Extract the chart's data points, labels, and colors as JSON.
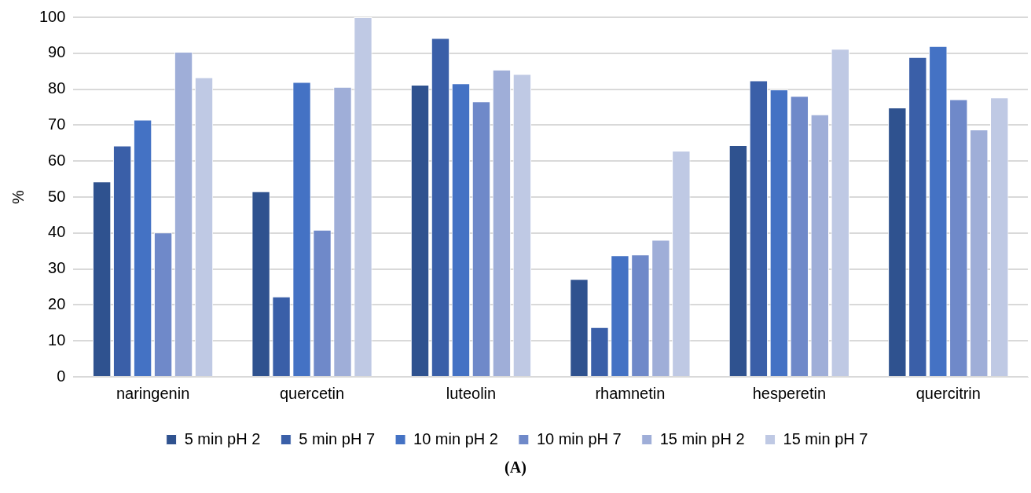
{
  "chart_data": {
    "type": "bar",
    "ylabel": "%",
    "categories": [
      "naringenin",
      "quercetin",
      "luteolin",
      "rhamnetin",
      "hesperetin",
      "quercitrin"
    ],
    "series": [
      {
        "name": "5 min pH 2",
        "color": "#2f528f",
        "values": [
          54.3,
          51.6,
          81.2,
          27.2,
          64.4,
          74.9
        ]
      },
      {
        "name": "5 min pH 7",
        "color": "#3a5fa8",
        "values": [
          64.3,
          22.3,
          94.2,
          13.8,
          82.4,
          88.9
        ]
      },
      {
        "name": "10 min pH 2",
        "color": "#4472c4",
        "values": [
          71.5,
          82.0,
          81.6,
          33.8,
          79.9,
          92.0
        ]
      },
      {
        "name": "10 min pH 7",
        "color": "#6f89c9",
        "values": [
          40.1,
          40.9,
          76.6,
          34.0,
          78.1,
          77.2
        ]
      },
      {
        "name": "15 min pH 2",
        "color": "#9faed8",
        "values": [
          90.4,
          80.6,
          85.4,
          38.1,
          73.0,
          68.8
        ]
      },
      {
        "name": "15 min pH 7",
        "color": "#bfc9e4",
        "values": [
          83.3,
          100,
          84.2,
          62.9,
          91.2,
          77.7
        ]
      }
    ],
    "ylim": [
      0,
      100
    ],
    "yticks": [
      0,
      10,
      20,
      30,
      40,
      50,
      60,
      70,
      80,
      90,
      100
    ],
    "grid": "y",
    "legend": "bottom",
    "annotations": [
      "(A)"
    ]
  }
}
